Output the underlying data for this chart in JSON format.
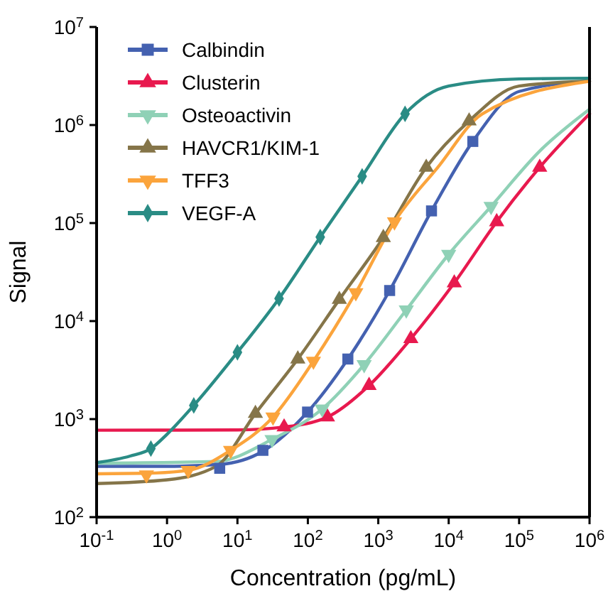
{
  "chart_data": {
    "type": "line",
    "xlabel": "Concentration (pg/mL)",
    "ylabel": "Signal",
    "log": "xy",
    "grid": false,
    "legend": "top left",
    "xlim": [
      0.1,
      1000000
    ],
    "ylim": [
      100,
      10000000
    ],
    "xticks": [
      {
        "value": 0.1,
        "label": "10$^{-1}$"
      },
      {
        "value": 1,
        "label": "10$^{0}$"
      },
      {
        "value": 10,
        "label": "10$^{1}$"
      },
      {
        "value": 100,
        "label": "10$^{2}$"
      },
      {
        "value": 1000,
        "label": "10$^{3}$"
      },
      {
        "value": 10000,
        "label": "10$^{4}$"
      },
      {
        "value": 100000,
        "label": "10$^{5}$"
      },
      {
        "value": 1000000,
        "label": "10$^{6}$"
      }
    ],
    "yticks": [
      {
        "value": 100,
        "label": "10$^{2}$"
      },
      {
        "value": 1000,
        "label": "10$^{3}$"
      },
      {
        "value": 10000,
        "label": "10$^{4}$"
      },
      {
        "value": 100000,
        "label": "10$^{5}$"
      },
      {
        "value": 1000000,
        "label": "10$^{6}$"
      },
      {
        "value": 10000000,
        "label": "10$^{7}$"
      }
    ],
    "series": [
      {
        "color": "#4461b0",
        "marker": "none",
        "x": [
          0.1,
          1,
          5.6,
          23,
          99,
          370,
          1450,
          5700,
          22000,
          100000,
          1000000
        ],
        "values": [
          330,
          330,
          345,
          470,
          1180,
          4100,
          20500,
          133000,
          680000,
          2200000,
          2800000
        ]
      },
      {
        "color": "#e8194e",
        "marker": "none",
        "x": [
          0.1,
          10,
          46,
          190,
          740,
          2900,
          12000,
          48000,
          196000,
          1000000
        ],
        "values": [
          770,
          775,
          830,
          1050,
          2200,
          6600,
          24500,
          103000,
          370000,
          1300000
        ]
      },
      {
        "color": "#8fd1b6",
        "marker": "none",
        "x": [
          0.1,
          5,
          31,
          160,
          630,
          2500,
          10000,
          40000,
          200000,
          1000000
        ],
        "values": [
          355,
          370,
          620,
          1270,
          3600,
          13000,
          48000,
          148000,
          550000,
          1450000
        ]
      },
      {
        "color": "#857549",
        "marker": "none",
        "x": [
          0.1,
          1,
          5,
          18,
          72,
          280,
          1180,
          4800,
          19500,
          100000,
          1000000
        ],
        "values": [
          220,
          240,
          330,
          1140,
          4100,
          16600,
          71000,
          370000,
          1100000,
          2500000,
          2800000
        ]
      },
      {
        "color": "#fba43c",
        "marker": "none",
        "x": [
          0.1,
          0.5,
          2,
          8,
          32,
          120,
          480,
          1700,
          7000,
          30000,
          1000000
        ],
        "values": [
          277,
          280,
          300,
          480,
          1050,
          3900,
          19500,
          103000,
          370000,
          1300000,
          2800000
        ]
      },
      {
        "color": "#2a8c85",
        "marker": "none",
        "x": [
          0.1,
          0.3,
          0.59,
          1,
          2.4,
          10,
          39,
          150,
          590,
          2400,
          10000,
          100000,
          1000000
        ],
        "values": [
          360,
          420,
          500,
          700,
          1380,
          4800,
          17000,
          72000,
          300000,
          1300000,
          2500000,
          2950000,
          3000000
        ]
      },
      {
        "type": "scatter",
        "name": "Calbindin",
        "color": "#4461b0",
        "marker": "square",
        "x": [
          5.6,
          23,
          99,
          370,
          1450,
          5700,
          22000
        ],
        "values": [
          315,
          480,
          1180,
          4100,
          20500,
          133000,
          680000
        ]
      },
      {
        "type": "scatter",
        "name": "Clusterin",
        "color": "#e8194e",
        "marker": "triangle",
        "x": [
          46,
          190,
          740,
          2900,
          12000,
          48000,
          196000
        ],
        "values": [
          830,
          1050,
          2200,
          6600,
          24500,
          103000,
          370000
        ]
      },
      {
        "type": "scatter",
        "name": "Osteoactivin",
        "color": "#8fd1b6",
        "marker": "triangle-down",
        "x": [
          31,
          160,
          630,
          2500,
          10000,
          40000
        ],
        "values": [
          620,
          1270,
          3600,
          13000,
          48000,
          148000
        ]
      },
      {
        "type": "scatter",
        "name": "HAVCR1/KIM-1",
        "color": "#857549",
        "marker": "triangle",
        "x": [
          18,
          72,
          280,
          1180,
          4800,
          19500
        ],
        "values": [
          1140,
          4100,
          16600,
          71000,
          370000,
          1100000
        ]
      },
      {
        "type": "scatter",
        "name": "TFF3",
        "color": "#fba43c",
        "marker": "triangle-down",
        "x": [
          0.51,
          2,
          8,
          32,
          120,
          480,
          1700
        ],
        "values": [
          270,
          300,
          480,
          1050,
          3900,
          19500,
          103000
        ]
      },
      {
        "type": "scatter",
        "name": "VEGF-A",
        "color": "#2a8c85",
        "marker": "diamond",
        "x": [
          0.59,
          2.4,
          10,
          39,
          150,
          590,
          2400
        ],
        "values": [
          500,
          1380,
          4800,
          17000,
          72000,
          300000,
          1300000
        ]
      }
    ]
  }
}
